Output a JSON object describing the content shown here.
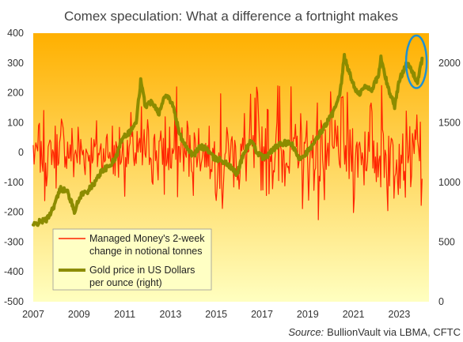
{
  "chart_data": {
    "type": "line",
    "title": "Comex speculation: What a difference a fortnight makes",
    "source_prefix": "Source:",
    "source_rest": "BullionVault via LBMA, CFTC",
    "x_ticks": [
      "2007",
      "2009",
      "2011",
      "2013",
      "2015",
      "2017",
      "2019",
      "2021",
      "2023"
    ],
    "xlim": [
      2007,
      2024.3
    ],
    "y_left": {
      "ylim": [
        -500,
        400
      ],
      "ticks": [
        "400",
        "300",
        "200",
        "100",
        "0",
        "-100",
        "-200",
        "-300",
        "-400",
        "-500"
      ]
    },
    "y_right": {
      "ylim": [
        0,
        2250
      ],
      "ticks": [
        "2000",
        "1500",
        "1000",
        "500",
        "0"
      ]
    },
    "legend_position": "bottom-left",
    "grid": false,
    "background_gradient": [
      "#ffb000",
      "#ffffc0"
    ],
    "highlight": {
      "shape": "ellipse",
      "color": "#1e90d2",
      "around": "2023 peak",
      "x_range": [
        2023.3,
        2024.2
      ],
      "y_range_right": [
        1790,
        2230
      ]
    },
    "series": [
      {
        "name": "Managed Money's 2-week change in notional tonnes",
        "axis": "left",
        "color": "#ff2200",
        "sampling": "random",
        "points": [
          [
            2007.0,
            110
          ],
          [
            2007.25,
            -120
          ],
          [
            2007.5,
            170
          ],
          [
            2007.75,
            -60
          ],
          [
            2008.0,
            120
          ],
          [
            2008.25,
            -160
          ],
          [
            2008.5,
            90
          ],
          [
            2008.75,
            -140
          ],
          [
            2009.0,
            150
          ],
          [
            2009.25,
            -80
          ],
          [
            2009.5,
            100
          ],
          [
            2009.75,
            -120
          ],
          [
            2010.0,
            90
          ],
          [
            2010.25,
            -110
          ],
          [
            2010.5,
            150
          ],
          [
            2010.75,
            -130
          ],
          [
            2011.0,
            130
          ],
          [
            2011.25,
            -180
          ],
          [
            2011.5,
            160
          ],
          [
            2011.75,
            -200
          ],
          [
            2012.0,
            120
          ],
          [
            2012.25,
            -150
          ],
          [
            2012.5,
            180
          ],
          [
            2012.75,
            -200
          ],
          [
            2013.0,
            160
          ],
          [
            2013.25,
            -250
          ],
          [
            2013.5,
            140
          ],
          [
            2013.75,
            -170
          ],
          [
            2014.0,
            150
          ],
          [
            2014.25,
            -130
          ],
          [
            2014.5,
            110
          ],
          [
            2014.75,
            -120
          ],
          [
            2015.0,
            170
          ],
          [
            2015.25,
            -300
          ],
          [
            2015.5,
            130
          ],
          [
            2015.75,
            -150
          ],
          [
            2016.0,
            210
          ],
          [
            2016.25,
            -200
          ],
          [
            2016.5,
            190
          ],
          [
            2016.75,
            -330
          ],
          [
            2017.0,
            200
          ],
          [
            2017.25,
            -230
          ],
          [
            2017.5,
            180
          ],
          [
            2017.75,
            -390
          ],
          [
            2018.0,
            120
          ],
          [
            2018.25,
            -250
          ],
          [
            2018.5,
            150
          ],
          [
            2018.75,
            -220
          ],
          [
            2019.0,
            240
          ],
          [
            2019.25,
            -280
          ],
          [
            2019.5,
            380
          ],
          [
            2019.75,
            -240
          ],
          [
            2020.0,
            200
          ],
          [
            2020.25,
            -250
          ],
          [
            2020.5,
            250
          ],
          [
            2020.75,
            -230
          ],
          [
            2021.0,
            210
          ],
          [
            2021.25,
            -180
          ],
          [
            2021.5,
            200
          ],
          [
            2021.75,
            -250
          ],
          [
            2022.0,
            240
          ],
          [
            2022.25,
            -280
          ],
          [
            2022.5,
            260
          ],
          [
            2022.75,
            -230
          ],
          [
            2023.0,
            200
          ],
          [
            2023.25,
            -210
          ],
          [
            2023.5,
            170
          ],
          [
            2023.75,
            -220
          ],
          [
            2024.0,
            330
          ]
        ]
      },
      {
        "name": "Gold price in US Dollars per ounce (right)",
        "axis": "right",
        "color": "#8c8c00",
        "points": [
          [
            2007.0,
            640
          ],
          [
            2007.3,
            670
          ],
          [
            2007.6,
            690
          ],
          [
            2007.9,
            800
          ],
          [
            2008.2,
            950
          ],
          [
            2008.5,
            920
          ],
          [
            2008.8,
            760
          ],
          [
            2009.1,
            900
          ],
          [
            2009.4,
            930
          ],
          [
            2009.7,
            1000
          ],
          [
            2010.0,
            1100
          ],
          [
            2010.3,
            1130
          ],
          [
            2010.6,
            1200
          ],
          [
            2010.9,
            1380
          ],
          [
            2011.2,
            1420
          ],
          [
            2011.5,
            1500
          ],
          [
            2011.7,
            1850
          ],
          [
            2011.9,
            1640
          ],
          [
            2012.2,
            1680
          ],
          [
            2012.5,
            1580
          ],
          [
            2012.8,
            1750
          ],
          [
            2013.1,
            1650
          ],
          [
            2013.4,
            1400
          ],
          [
            2013.7,
            1300
          ],
          [
            2014.0,
            1220
          ],
          [
            2014.3,
            1300
          ],
          [
            2014.6,
            1280
          ],
          [
            2014.9,
            1200
          ],
          [
            2015.2,
            1190
          ],
          [
            2015.5,
            1150
          ],
          [
            2015.9,
            1070
          ],
          [
            2016.2,
            1240
          ],
          [
            2016.5,
            1350
          ],
          [
            2016.8,
            1250
          ],
          [
            2017.1,
            1200
          ],
          [
            2017.4,
            1260
          ],
          [
            2017.7,
            1310
          ],
          [
            2018.0,
            1330
          ],
          [
            2018.3,
            1320
          ],
          [
            2018.6,
            1200
          ],
          [
            2018.9,
            1240
          ],
          [
            2019.2,
            1300
          ],
          [
            2019.5,
            1400
          ],
          [
            2019.8,
            1490
          ],
          [
            2020.1,
            1580
          ],
          [
            2020.4,
            1720
          ],
          [
            2020.6,
            2050
          ],
          [
            2020.9,
            1870
          ],
          [
            2021.2,
            1730
          ],
          [
            2021.5,
            1800
          ],
          [
            2021.8,
            1780
          ],
          [
            2022.1,
            1900
          ],
          [
            2022.2,
            2040
          ],
          [
            2022.5,
            1800
          ],
          [
            2022.8,
            1640
          ],
          [
            2023.0,
            1850
          ],
          [
            2023.3,
            2000
          ],
          [
            2023.5,
            1950
          ],
          [
            2023.8,
            1840
          ],
          [
            2024.0,
            2030
          ]
        ]
      }
    ]
  }
}
